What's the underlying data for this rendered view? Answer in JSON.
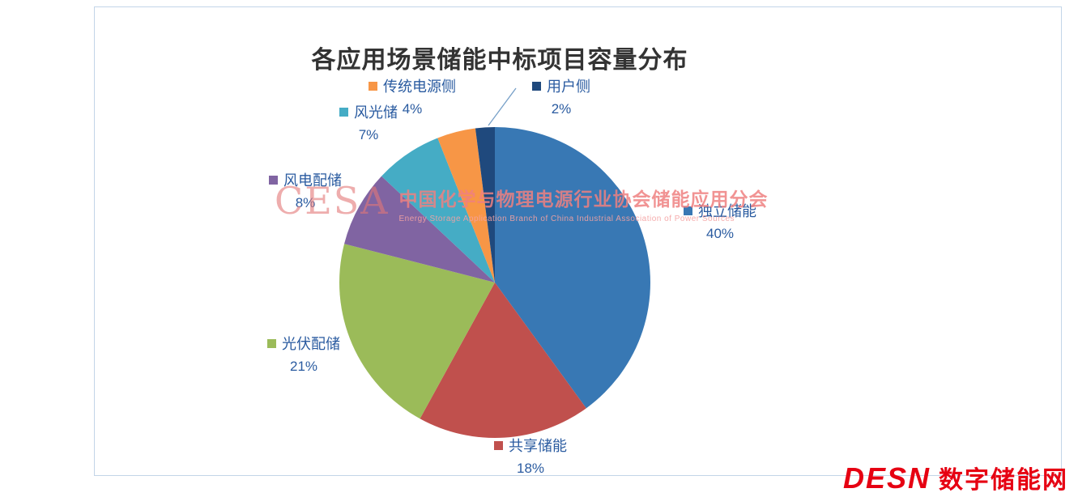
{
  "chart_data": {
    "type": "pie",
    "title": "各应用场景储能中标项目容量分布",
    "direction": "clockwise",
    "start_angle_deg": 0,
    "background": "#ffffff",
    "label_color": "#2a5ba0",
    "legend_position": "outside-data-labels",
    "slices": [
      {
        "label": "独立储能",
        "pct": 40,
        "value_label": "40%",
        "color": "#3878B4"
      },
      {
        "label": "共享储能",
        "pct": 18,
        "value_label": "18%",
        "color": "#C0504D"
      },
      {
        "label": "光伏配储",
        "pct": 21,
        "value_label": "21%",
        "color": "#9BBB59"
      },
      {
        "label": "风电配储",
        "pct": 8,
        "value_label": "8%",
        "color": "#8064A2"
      },
      {
        "label": "风光储",
        "pct": 7,
        "value_label": "7%",
        "color": "#45ACC5"
      },
      {
        "label": "传统电源侧",
        "pct": 4,
        "value_label": "4%",
        "color": "#F79646"
      },
      {
        "label": "用户侧",
        "pct": 2,
        "value_label": "2%",
        "color": "#1F497D"
      }
    ]
  },
  "watermark": {
    "acronym": "CESA",
    "cn": "中国化学与物理电源行业协会储能应用分会",
    "en": "Energy Storage Application Branch of China Industrial Association of Power Sources"
  },
  "footer_logo": {
    "brand": "DESN",
    "name": "数字储能网",
    "color": "#e60012"
  }
}
